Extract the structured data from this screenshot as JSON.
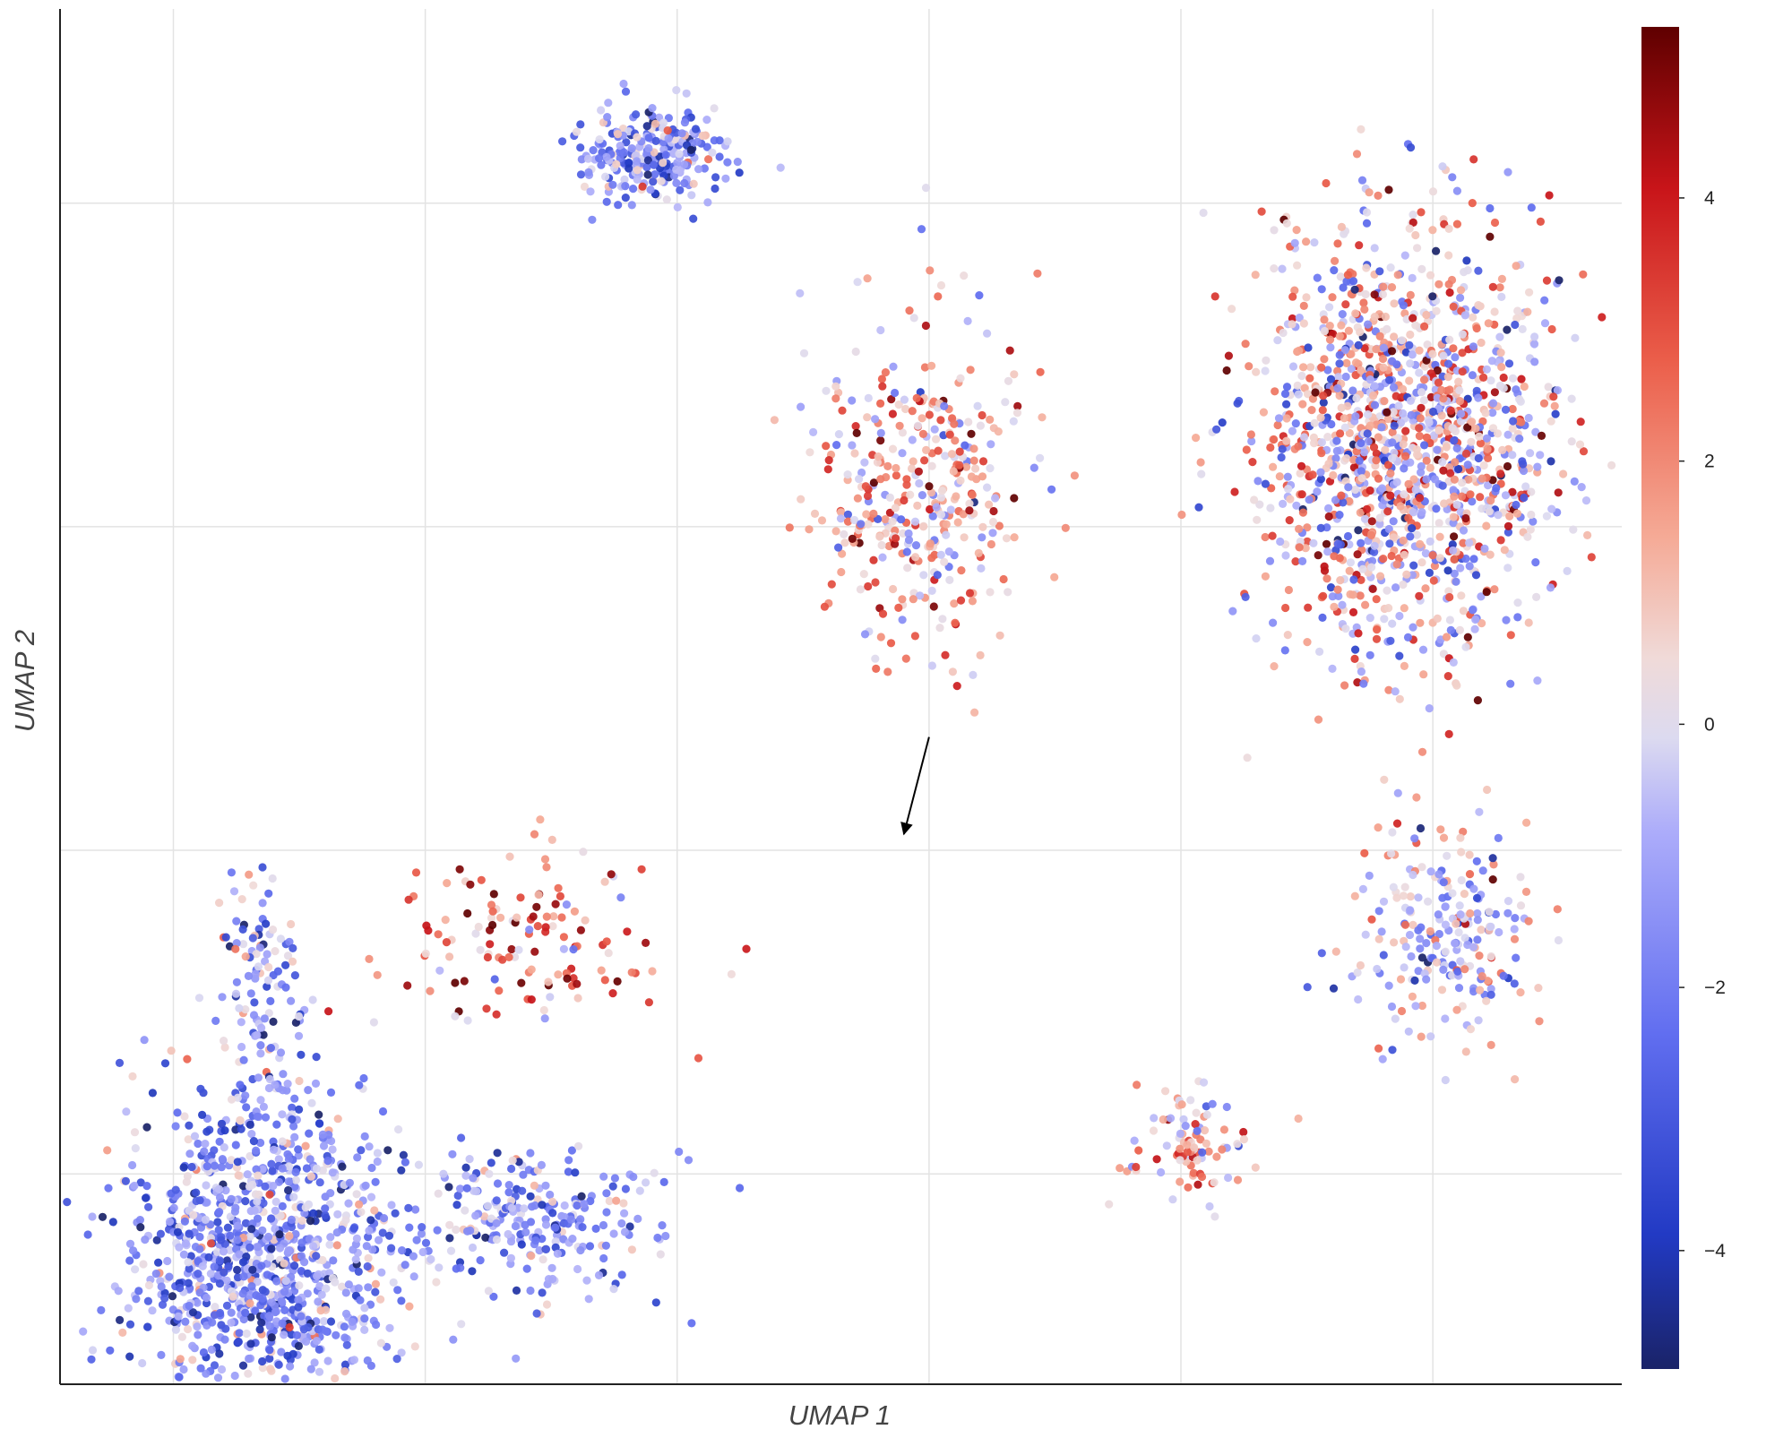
{
  "chart_data": {
    "type": "scatter",
    "title": "",
    "xlabel": "UMAP 1",
    "ylabel": "UMAP 2",
    "x_tick_labels_shown": false,
    "y_tick_labels_shown": false,
    "grid": true,
    "legend": "colorbar-right",
    "colormap": "coolwarm (blue-white-red)",
    "color_range": [
      -4.9,
      5.3
    ],
    "colorbar_ticks": [
      {
        "value": -4,
        "label": "−4"
      },
      {
        "value": -2,
        "label": "−2"
      },
      {
        "value": 0,
        "label": "0"
      },
      {
        "value": 2,
        "label": "2"
      },
      {
        "value": 4,
        "label": "4"
      }
    ],
    "clusters": [
      {
        "name": "lower-left cluster",
        "center": [
          -1.3,
          -3.5
        ],
        "spread": [
          0.9,
          0.85
        ],
        "count": 1100,
        "mean_value": -1.6,
        "value_sd": 1.5
      },
      {
        "name": "lower-left tail",
        "center": [
          0.9,
          -3.3
        ],
        "spread": [
          0.8,
          0.35
        ],
        "count": 260,
        "mean_value": -1.5,
        "value_sd": 1.4
      },
      {
        "name": "lower-left arm",
        "center": [
          -1.3,
          -1.8
        ],
        "spread": [
          0.3,
          0.55
        ],
        "count": 110,
        "mean_value": -1.4,
        "value_sd": 1.8
      },
      {
        "name": "connecting bridge",
        "center": [
          0.9,
          -1.6
        ],
        "spread": [
          0.9,
          0.45
        ],
        "count": 130,
        "mean_value": 2.5,
        "value_sd": 2.2
      },
      {
        "name": "top-middle cluster",
        "center": [
          1.8,
          3.3
        ],
        "spread": [
          0.45,
          0.25
        ],
        "count": 260,
        "mean_value": -1.6,
        "value_sd": 1.5
      },
      {
        "name": "middle cluster",
        "center": [
          3.9,
          1.2
        ],
        "spread": [
          0.7,
          0.8
        ],
        "count": 380,
        "mean_value": 1.2,
        "value_sd": 1.9
      },
      {
        "name": "right cluster",
        "center": [
          7.8,
          1.5
        ],
        "spread": [
          1.0,
          1.1
        ],
        "count": 1400,
        "mean_value": 0.5,
        "value_sd": 2.3
      },
      {
        "name": "right lower",
        "center": [
          8.1,
          -1.5
        ],
        "spread": [
          0.55,
          0.6
        ],
        "count": 230,
        "mean_value": -0.3,
        "value_sd": 1.8
      },
      {
        "name": "right bottom tail",
        "center": [
          6.1,
          -2.8
        ],
        "spread": [
          0.45,
          0.3
        ],
        "count": 90,
        "mean_value": 0.8,
        "value_sd": 2.0
      }
    ],
    "axes": {
      "xlim": [
        -2.9,
        9.5
      ],
      "ylim": [
        -4.3,
        4.2
      ],
      "grid_x": [
        -2,
        0,
        2,
        4,
        6,
        8
      ],
      "grid_y": [
        -3,
        -1,
        1,
        3
      ]
    },
    "annotation": {
      "type": "arrow",
      "from": [
        4.0,
        -0.3
      ],
      "to": [
        3.8,
        -0.9
      ]
    }
  }
}
